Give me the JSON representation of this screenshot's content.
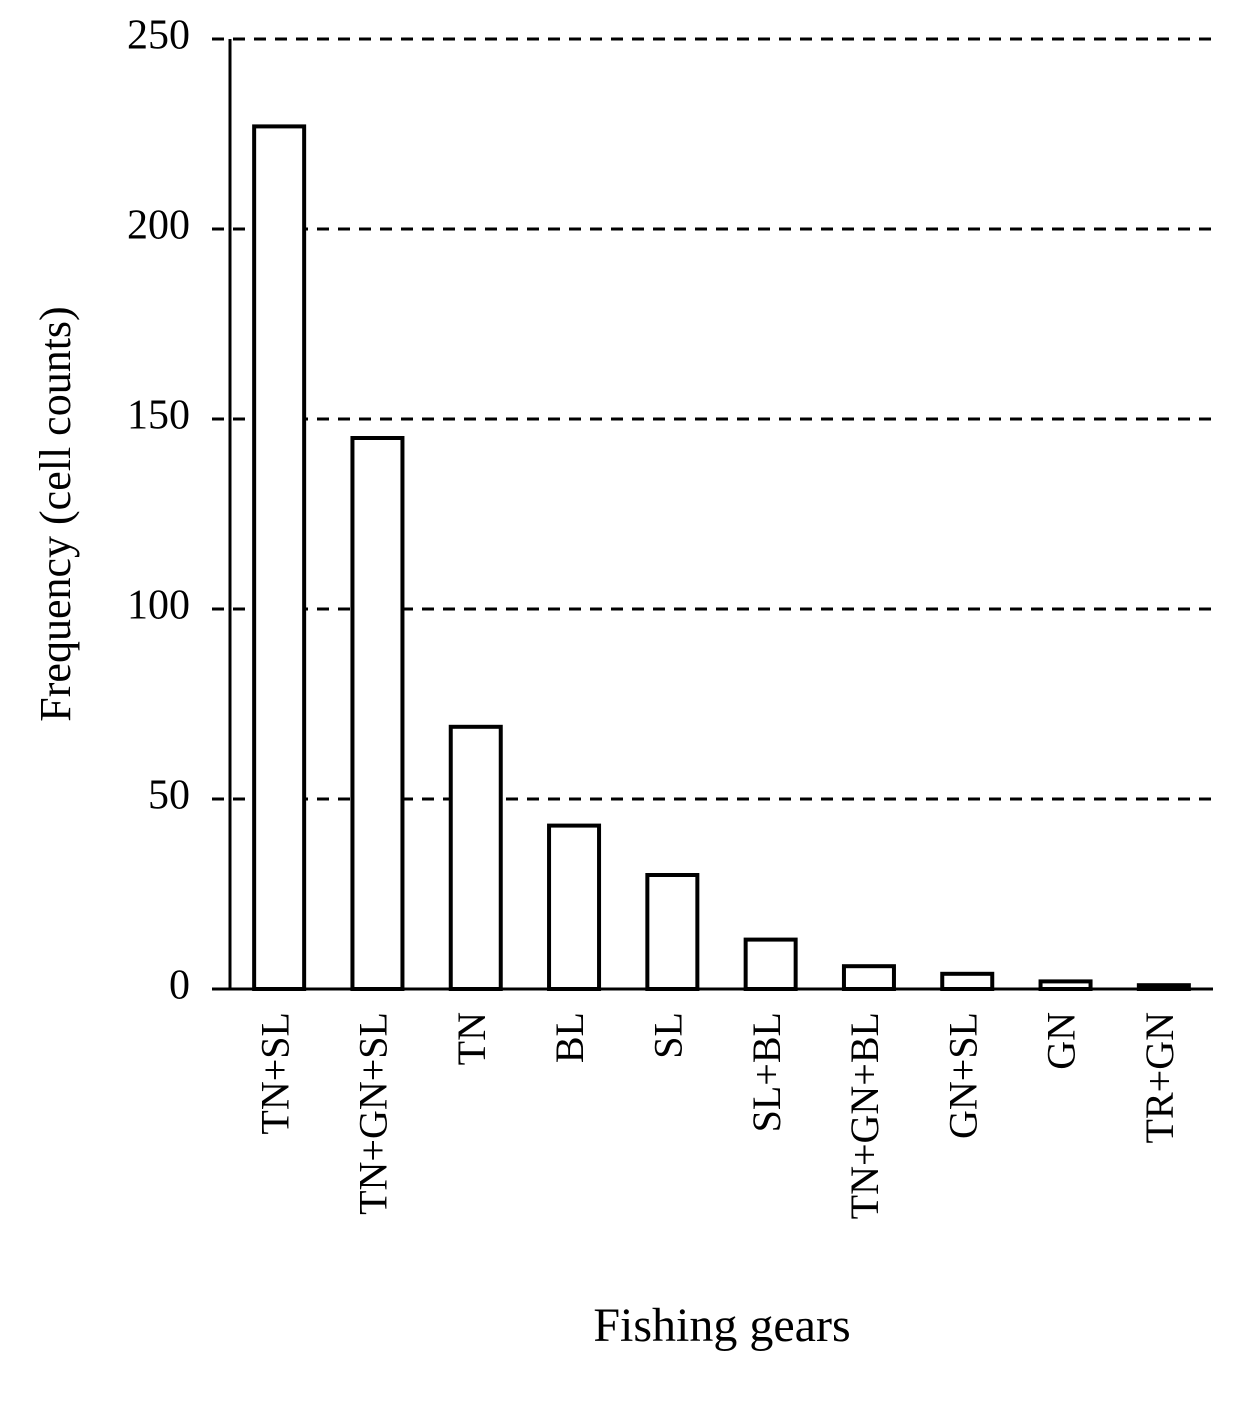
{
  "chart_data": {
    "type": "bar",
    "x_label": "Fishing gears",
    "y_label": "Frequency (cell counts)",
    "categories": [
      "TN+SL",
      "TN+GN+SL",
      "TN",
      "BL",
      "SL",
      "SL+BL",
      "TN+GN+BL",
      "GN+SL",
      "GN",
      "TR+GN"
    ],
    "values": [
      227,
      145,
      69,
      43,
      30,
      13,
      6,
      4,
      2,
      1
    ],
    "color": "#ffffff",
    "ylim": [
      0,
      250
    ],
    "yticks": [
      0,
      50,
      100,
      150,
      200,
      250
    ],
    "grid": true
  }
}
